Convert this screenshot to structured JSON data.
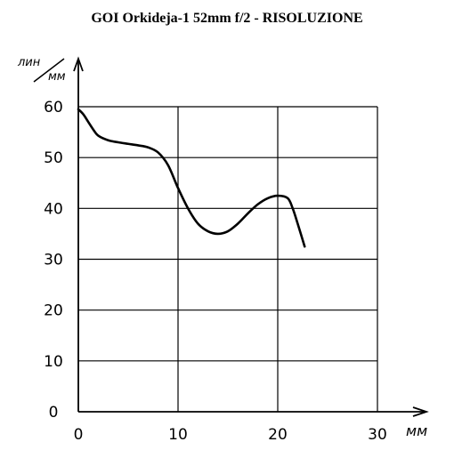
{
  "chart_data": {
    "type": "line",
    "title": "GOI Orkideja-1 52mm f/2  - RISOLUZIONE",
    "ylabel_numerator": "лин",
    "ylabel_denominator": "мм",
    "xlabel": "мм",
    "xlim": [
      0,
      30
    ],
    "ylim": [
      0,
      60
    ],
    "x_ticks": [
      0,
      10,
      20,
      30
    ],
    "y_ticks": [
      0,
      10,
      20,
      30,
      40,
      50,
      60
    ],
    "grid": true,
    "series": [
      {
        "x": [
          0,
          0.5,
          1,
          1.5,
          2,
          3,
          4,
          5,
          6,
          7,
          8,
          9,
          10,
          11,
          12,
          13,
          14,
          15,
          16,
          17,
          18,
          19,
          20,
          21,
          21.5,
          22,
          22.7
        ],
        "y": [
          59.5,
          58.5,
          57,
          55.5,
          54.3,
          53.4,
          53,
          52.7,
          52.4,
          52,
          51,
          48.5,
          44,
          40,
          37,
          35.5,
          35,
          35.5,
          37,
          39,
          40.8,
          42,
          42.5,
          42,
          40,
          37,
          32.5
        ]
      }
    ]
  }
}
